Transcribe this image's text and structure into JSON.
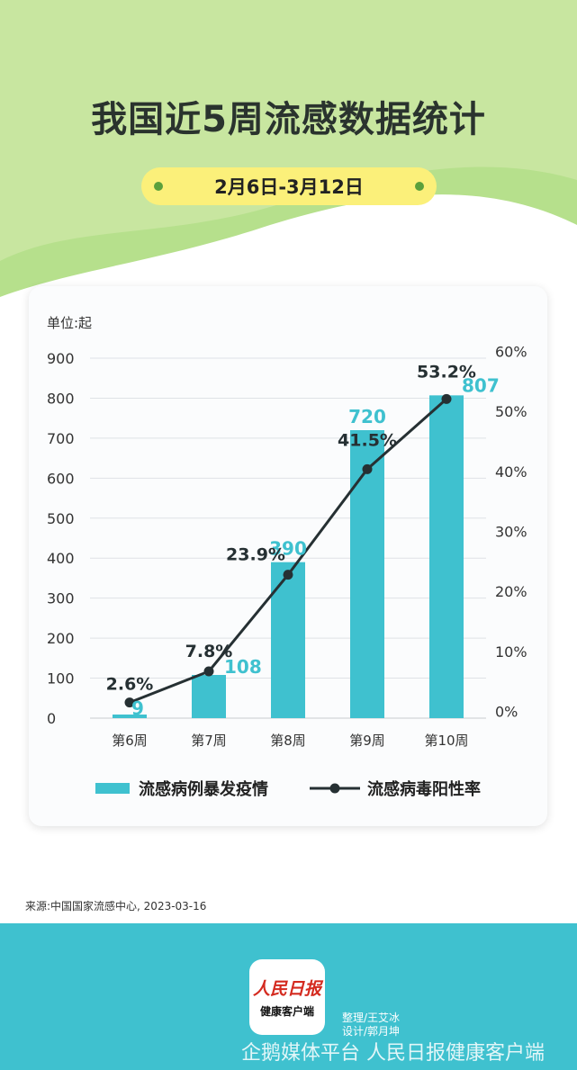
{
  "title": "我国近5周流感数据统计",
  "date_range": "2月6日-3月12日",
  "colors": {
    "bar": "#3fc1cf",
    "line": "#263033",
    "top_green": "#c8e6a0",
    "pill": "#fbf07a",
    "footer": "#3fc1cf"
  },
  "chart_data": {
    "type": "bar+line",
    "unit_label": "单位:起",
    "categories": [
      "第6周",
      "第7周",
      "第8周",
      "第9周",
      "第10周"
    ],
    "series": [
      {
        "name": "流感病例暴发疫情",
        "type": "bar",
        "axis": "left",
        "values": [
          9,
          108,
          390,
          720,
          807
        ],
        "labels": [
          "9",
          "108",
          "390",
          "720",
          "807"
        ]
      },
      {
        "name": "流感病毒阳性率",
        "type": "line",
        "axis": "right",
        "values": [
          2.6,
          7.8,
          23.9,
          41.5,
          53.2
        ],
        "labels": [
          "2.6%",
          "7.8%",
          "23.9%",
          "41.5%",
          "53.2%"
        ]
      }
    ],
    "y_left": {
      "range": [
        0,
        900
      ],
      "ticks": [
        "0",
        "100",
        "200",
        "300",
        "400",
        "500",
        "600",
        "700",
        "800",
        "900"
      ]
    },
    "y_right": {
      "range": [
        0,
        60
      ],
      "ticks": [
        "0%",
        "10%",
        "20%",
        "30%",
        "40%",
        "50%",
        "60%"
      ]
    },
    "grid": true,
    "legend_position": "bottom"
  },
  "source": "来源:中国国家流感中心, 2023-03-16",
  "logo": {
    "line1": "人民日报",
    "line2": "健康客户端"
  },
  "credits": {
    "editor": "整理/王艾冰",
    "designer": "设计/郭月坤"
  },
  "watermark": "企鹅媒体平台 人民日报健康客户端"
}
